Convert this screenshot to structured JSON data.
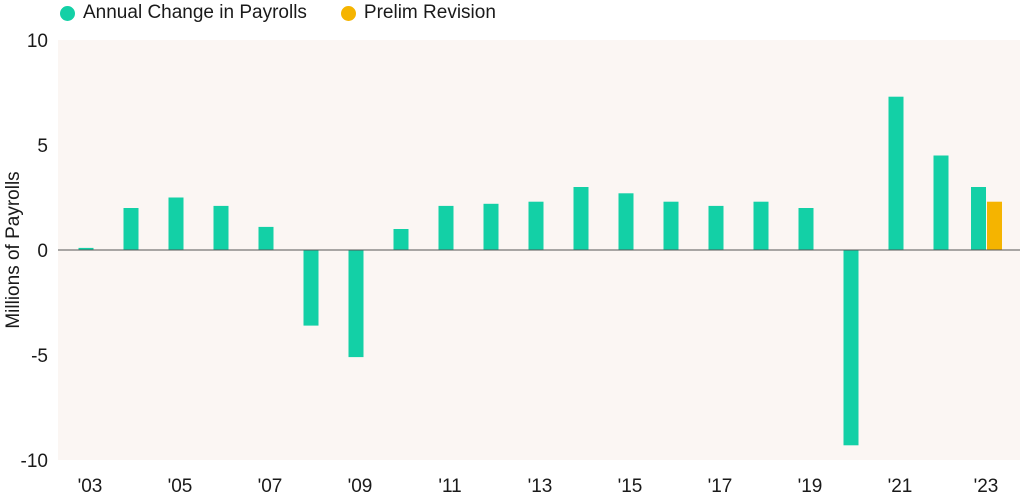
{
  "chart_data": {
    "type": "bar",
    "ylabel": "Millions of Payrolls",
    "ylim": [
      -10,
      10
    ],
    "yticks": [
      "10",
      "5",
      "0",
      "-5",
      "-10"
    ],
    "ytick_values": [
      10,
      5,
      0,
      -5,
      -10
    ],
    "xtick_labels": [
      "'03",
      "'05",
      "'07",
      "'09",
      "'11",
      "'13",
      "'15",
      "'17",
      "'19",
      "'21",
      "'23"
    ],
    "legend_position": "top-left",
    "series": [
      {
        "name": "Annual Change in Payrolls",
        "color": "#13d0a6",
        "x": [
          2003,
          2004,
          2005,
          2006,
          2007,
          2008,
          2009,
          2010,
          2011,
          2012,
          2013,
          2014,
          2015,
          2016,
          2017,
          2018,
          2019,
          2020,
          2021,
          2022,
          2023
        ],
        "values": [
          0.1,
          2.0,
          2.5,
          2.1,
          1.1,
          -3.6,
          -5.1,
          1.0,
          2.1,
          2.2,
          2.3,
          3.0,
          2.7,
          2.3,
          2.1,
          2.3,
          2.0,
          -9.3,
          7.3,
          4.5,
          3.0
        ]
      },
      {
        "name": "Prelim Revision",
        "color": "#f5b400",
        "x": [
          2023
        ],
        "values": [
          2.3
        ]
      }
    ],
    "background_color": "#fbf6f3"
  }
}
